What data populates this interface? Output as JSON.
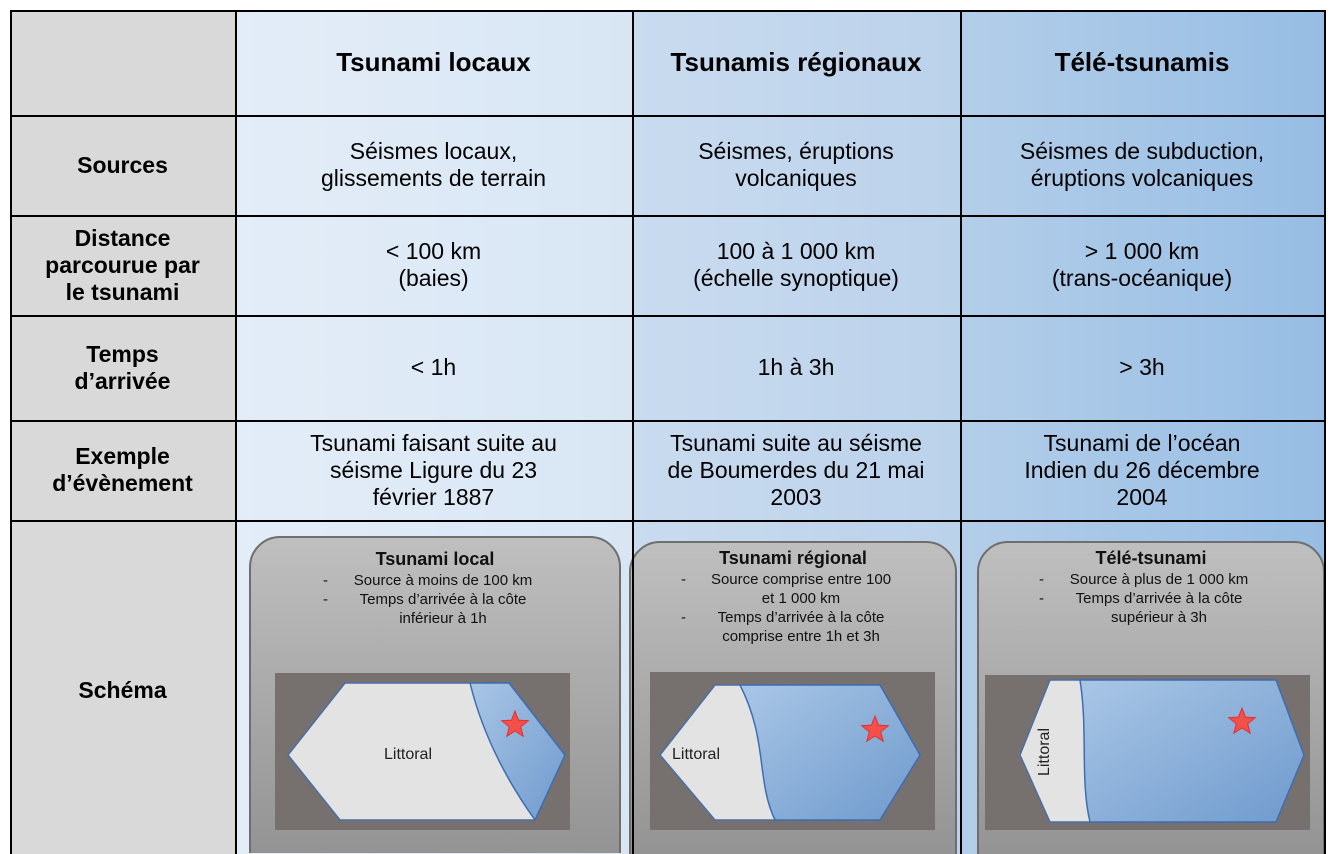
{
  "table": {
    "header": [
      "Tsunami locaux",
      "Tsunamis régionaux",
      "Télé-tsunamis"
    ],
    "rows": [
      {
        "label": [
          "Sources"
        ],
        "cells": [
          [
            "Séismes locaux,",
            "glissements de terrain"
          ],
          [
            "Séismes, éruptions",
            "volcaniques"
          ],
          [
            "Séismes de subduction,",
            "éruptions volcaniques"
          ]
        ]
      },
      {
        "label": [
          "Distance",
          "parcourue par",
          "le tsunami"
        ],
        "cells": [
          [
            "< 100 km",
            "(baies)"
          ],
          [
            "100 à 1 000 km",
            "(échelle synoptique)"
          ],
          [
            "> 1 000 km",
            "(trans-océanique)"
          ]
        ]
      },
      {
        "label": [
          "Temps",
          "d’arrivée"
        ],
        "cells": [
          [
            "< 1h"
          ],
          [
            "1h à 3h"
          ],
          [
            "> 3h"
          ]
        ]
      },
      {
        "label": [
          "Exemple",
          "d’évènement"
        ],
        "cells": [
          [
            "Tsunami faisant suite au",
            "séisme Ligure du 23",
            "février 1887"
          ],
          [
            "Tsunami suite au séisme",
            "de Boumerdes du 21 mai",
            "2003"
          ],
          [
            "Tsunami de l’océan",
            "Indien du 26 décembre",
            "2004"
          ]
        ]
      }
    ],
    "schema": {
      "label": "Schéma",
      "diagrams": [
        {
          "title": "Tsunami local",
          "bullets": [
            [
              "Source à moins de 100 km"
            ],
            [
              "Temps d’arrivée à la côte",
              "inférieur à 1h"
            ]
          ],
          "coast": "Littoral"
        },
        {
          "title": "Tsunami régional",
          "bullets": [
            [
              "Source comprise entre 100",
              "et 1 000 km"
            ],
            [
              "Temps d’arrivée à la côte",
              "comprise entre 1h et 3h"
            ]
          ],
          "coast": "Littoral"
        },
        {
          "title": "Télé-tsunami",
          "bullets": [
            [
              "Source à plus de 1 000 km"
            ],
            [
              "Temps d’arrivée à la côte",
              "supérieur à 3h"
            ]
          ],
          "coast": "Littoral"
        }
      ]
    }
  }
}
